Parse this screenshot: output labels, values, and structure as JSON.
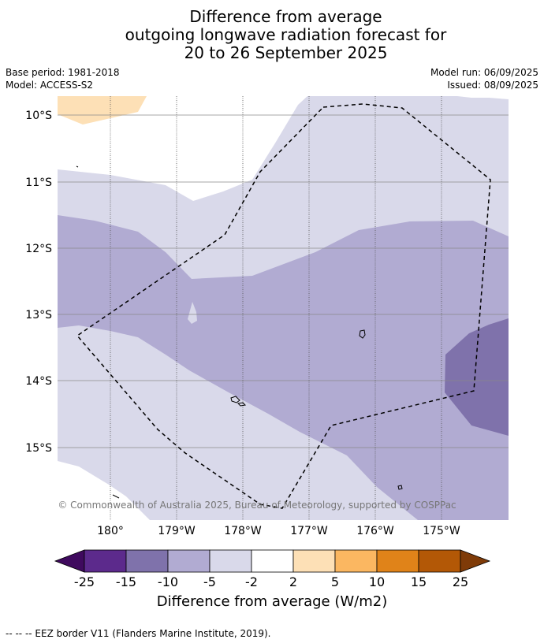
{
  "header": {
    "title_line1": "Difference from average",
    "title_line2": "outgoing longwave radiation forecast for",
    "title_line3": "20 to 26 September 2025",
    "base_period": "Base period: 1981-2018",
    "model": "Model: ACCESS-S2",
    "model_run": "Model run: 06/09/2025",
    "issued": "Issued: 08/09/2025"
  },
  "map": {
    "lat_labels": [
      "10°S",
      "11°S",
      "12°S",
      "13°S",
      "14°S",
      "15°S"
    ],
    "lon_labels": [
      "180°",
      "179°W",
      "178°W",
      "177°W",
      "176°W",
      "175°W"
    ],
    "copyright": "© Commonwealth of Australia 2025, Bureau of Meteorology, supported by COSPPac",
    "colors": {
      "c_neg25": "#3f0a5e",
      "c_neg15_25": "#5c2a8c",
      "c_neg10_15": "#7f72ab",
      "c_neg5_10": "#b1abd2",
      "c_neg2_5": "#d9d9ea",
      "c_neutral": "#ffffff",
      "c_2_5": "#fde0b6",
      "c_5_10": "#fbb761",
      "c_10_15": "#e08319",
      "c_15_25": "#b35806",
      "c_25": "#7f3b08"
    }
  },
  "colorbar": {
    "ticks": [
      "-25",
      "-15",
      "-10",
      "-5",
      "-2",
      "2",
      "5",
      "10",
      "15",
      "25"
    ],
    "label": "Difference from average (W/m2)"
  },
  "footer": {
    "eez_note": "--  --  -- EEZ border V11 (Flanders Marine Institute, 2019)."
  }
}
